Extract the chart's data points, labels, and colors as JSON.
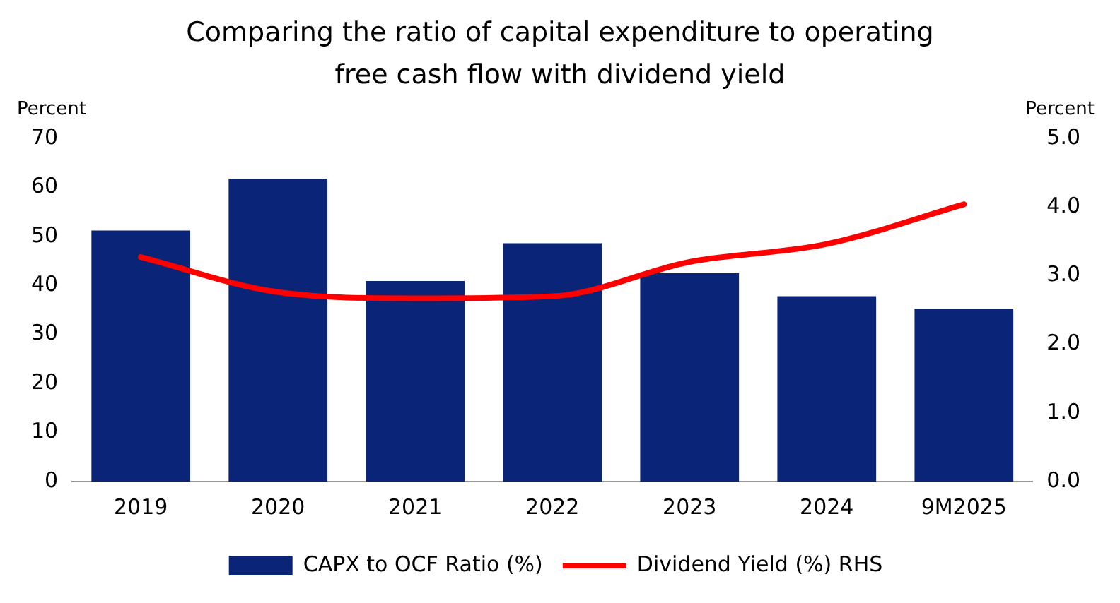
{
  "chart_data": {
    "type": "bar",
    "title": "Comparing the ratio of capital expenditure to operating free cash flow with dividend yield",
    "ylabel": "Percent",
    "y2label": "Percent",
    "categories": [
      "2019",
      "2020",
      "2021",
      "2022",
      "2023",
      "2024",
      "9M2025"
    ],
    "series": [
      {
        "name": "CAPX to OCF Ratio (%)",
        "color": "#0a2477",
        "values": [
          51.2,
          61.8,
          40.9,
          48.6,
          42.5,
          37.8,
          35.3
        ]
      },
      {
        "name": "Dividend Yield (%) RHS",
        "type": "line",
        "axis": "y2",
        "color": "#ff0000",
        "values": [
          3.27,
          2.76,
          2.67,
          2.7,
          3.2,
          3.46,
          4.04
        ]
      }
    ],
    "ylim": [
      0,
      70
    ],
    "yticks": [
      0,
      10,
      20,
      30,
      40,
      50,
      60,
      70
    ],
    "y2lim": [
      0,
      5
    ],
    "y2ticks": [
      {
        "value": 0,
        "label": "0.0"
      },
      {
        "value": 1,
        "label": "1.0"
      },
      {
        "value": 2,
        "label": "2.0"
      },
      {
        "value": 3,
        "label": "3.0"
      },
      {
        "value": 4,
        "label": "4.0"
      },
      {
        "value": 5,
        "label": "5.0"
      }
    ],
    "grid": false,
    "legend": "bottom",
    "marker": "none",
    "line_style": "solid"
  }
}
